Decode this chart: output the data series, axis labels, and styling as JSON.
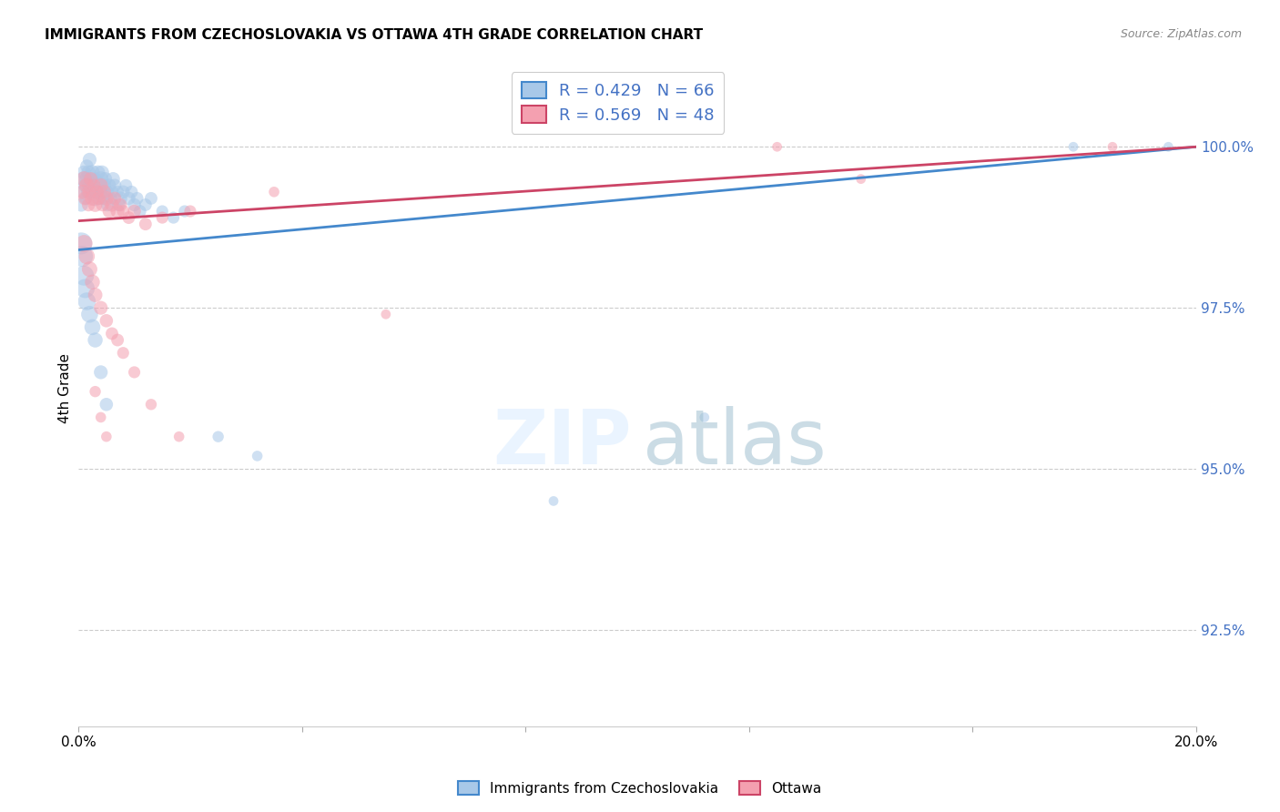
{
  "title": "IMMIGRANTS FROM CZECHOSLOVAKIA VS OTTAWA 4TH GRADE CORRELATION CHART",
  "source": "Source: ZipAtlas.com",
  "ylabel": "4th Grade",
  "xlim": [
    0.0,
    20.0
  ],
  "ylim": [
    91.0,
    101.5
  ],
  "yticks": [
    92.5,
    95.0,
    97.5,
    100.0
  ],
  "ytick_labels": [
    "92.5%",
    "95.0%",
    "97.5%",
    "100.0%"
  ],
  "blue_R": 0.429,
  "blue_N": 66,
  "pink_R": 0.569,
  "pink_N": 48,
  "blue_color": "#a8c8e8",
  "pink_color": "#f4a0b0",
  "blue_line_color": "#4488cc",
  "pink_line_color": "#cc4466",
  "legend_label_blue": "Immigrants from Czechoslovakia",
  "legend_label_pink": "Ottawa",
  "blue_x": [
    0.05,
    0.08,
    0.1,
    0.1,
    0.12,
    0.13,
    0.15,
    0.15,
    0.17,
    0.18,
    0.2,
    0.2,
    0.22,
    0.25,
    0.25,
    0.27,
    0.3,
    0.3,
    0.32,
    0.35,
    0.35,
    0.38,
    0.4,
    0.4,
    0.42,
    0.45,
    0.45,
    0.48,
    0.5,
    0.52,
    0.55,
    0.58,
    0.6,
    0.62,
    0.65,
    0.7,
    0.72,
    0.75,
    0.8,
    0.85,
    0.9,
    0.95,
    1.0,
    1.05,
    1.1,
    1.2,
    1.3,
    1.5,
    1.7,
    1.9,
    0.05,
    0.07,
    0.1,
    0.12,
    0.15,
    0.2,
    0.25,
    0.3,
    0.4,
    0.5,
    2.5,
    3.2,
    8.5,
    11.2,
    17.8,
    19.5
  ],
  "blue_y": [
    99.1,
    99.3,
    99.5,
    99.6,
    99.4,
    99.2,
    99.5,
    99.7,
    99.3,
    99.6,
    99.4,
    99.8,
    99.5,
    99.3,
    99.6,
    99.4,
    99.2,
    99.5,
    99.3,
    99.6,
    99.4,
    99.2,
    99.5,
    99.3,
    99.6,
    99.4,
    99.2,
    99.5,
    99.3,
    99.1,
    99.4,
    99.2,
    99.3,
    99.5,
    99.4,
    99.3,
    99.1,
    99.2,
    99.3,
    99.4,
    99.2,
    99.3,
    99.1,
    99.2,
    99.0,
    99.1,
    99.2,
    99.0,
    98.9,
    99.0,
    98.5,
    98.3,
    98.0,
    97.8,
    97.6,
    97.4,
    97.2,
    97.0,
    96.5,
    96.0,
    95.5,
    95.2,
    94.5,
    95.8,
    100.0,
    100.0
  ],
  "blue_sizes": [
    120,
    110,
    150,
    130,
    120,
    100,
    140,
    110,
    120,
    130,
    150,
    120,
    110,
    130,
    140,
    120,
    150,
    110,
    120,
    130,
    140,
    110,
    150,
    120,
    130,
    140,
    110,
    120,
    130,
    110,
    120,
    100,
    110,
    120,
    110,
    100,
    110,
    120,
    110,
    100,
    110,
    100,
    110,
    100,
    100,
    100,
    100,
    90,
    90,
    90,
    300,
    280,
    250,
    230,
    200,
    180,
    160,
    140,
    120,
    110,
    80,
    70,
    60,
    60,
    60,
    60
  ],
  "pink_x": [
    0.08,
    0.1,
    0.12,
    0.15,
    0.18,
    0.2,
    0.22,
    0.25,
    0.28,
    0.3,
    0.33,
    0.36,
    0.4,
    0.43,
    0.46,
    0.5,
    0.55,
    0.6,
    0.65,
    0.7,
    0.75,
    0.8,
    0.9,
    1.0,
    1.2,
    1.5,
    2.0,
    0.1,
    0.15,
    0.2,
    0.25,
    0.3,
    0.4,
    0.5,
    0.6,
    0.7,
    0.8,
    1.0,
    1.3,
    1.8,
    3.5,
    5.5,
    12.5,
    14.0,
    18.5,
    0.3,
    0.4,
    0.5
  ],
  "pink_y": [
    99.3,
    99.5,
    99.2,
    99.4,
    99.1,
    99.3,
    99.5,
    99.2,
    99.4,
    99.1,
    99.3,
    99.2,
    99.4,
    99.1,
    99.3,
    99.2,
    99.0,
    99.1,
    99.2,
    99.0,
    99.1,
    99.0,
    98.9,
    99.0,
    98.8,
    98.9,
    99.0,
    98.5,
    98.3,
    98.1,
    97.9,
    97.7,
    97.5,
    97.3,
    97.1,
    97.0,
    96.8,
    96.5,
    96.0,
    95.5,
    99.3,
    97.4,
    100.0,
    99.5,
    100.0,
    96.2,
    95.8,
    95.5
  ],
  "pink_sizes": [
    130,
    150,
    120,
    140,
    110,
    130,
    120,
    140,
    110,
    130,
    120,
    110,
    130,
    110,
    120,
    130,
    110,
    120,
    110,
    120,
    110,
    100,
    100,
    110,
    100,
    90,
    90,
    180,
    160,
    150,
    140,
    130,
    120,
    110,
    100,
    100,
    90,
    90,
    80,
    70,
    70,
    60,
    60,
    60,
    60,
    80,
    70,
    70
  ]
}
